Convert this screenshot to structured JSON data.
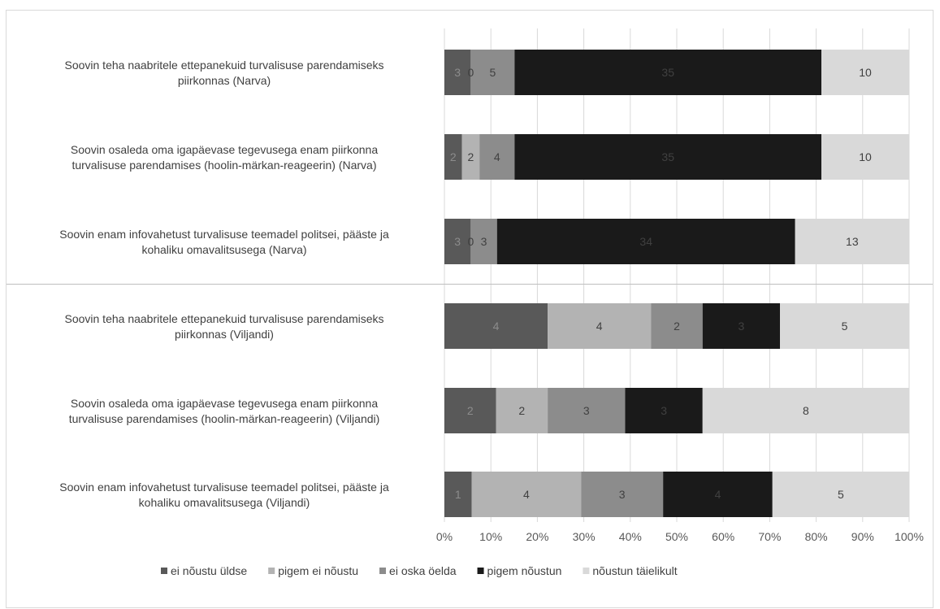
{
  "chart_data": {
    "type": "bar",
    "orientation": "horizontal",
    "stacked": "percent",
    "categories": [
      [
        "Soovin teha naabritele ettepanekuid turvalisuse parendamiseks",
        "piirkonnas  (Narva)"
      ],
      [
        "Soovin osaleda oma igapäevase tegevusega enam piirkonna",
        "turvalisuse parendamises (hoolin-märkan-reageerin)  (Narva)"
      ],
      [
        "Soovin enam infovahetust turvalisuse teemadel politsei, pääste ja",
        "kohaliku omavalitsusega  (Narva)"
      ],
      [
        "Soovin teha naabritele ettepanekuid turvalisuse parendamiseks",
        "piirkonnas  (Viljandi)"
      ],
      [
        "Soovin osaleda oma igapäevase tegevusega enam piirkonna",
        "turvalisuse parendamises (hoolin-märkan-reageerin)  (Viljandi)"
      ],
      [
        "Soovin enam infovahetust turvalisuse teemadel politsei, pääste ja",
        "kohaliku omavalitsusega  (Viljandi)"
      ]
    ],
    "series": [
      {
        "name": "ei nõustu üldse",
        "color": "#595959",
        "label_color": "#8c8c8c",
        "values": [
          3,
          2,
          3,
          4,
          2,
          1
        ]
      },
      {
        "name": "pigem ei nõustu",
        "color": "#b3b3b3",
        "label_color": "#404040",
        "values": [
          0,
          2,
          0,
          4,
          2,
          4
        ]
      },
      {
        "name": "ei oska öelda",
        "color": "#8c8c8c",
        "label_color": "#404040",
        "values": [
          5,
          4,
          3,
          2,
          3,
          3
        ]
      },
      {
        "name": "pigem nõustun",
        "color": "#1a1a1a",
        "label_color": "#404040",
        "values": [
          35,
          35,
          34,
          3,
          3,
          4
        ]
      },
      {
        "name": "nõustun täielikult",
        "color": "#d9d9d9",
        "label_color": "#404040",
        "values": [
          10,
          10,
          13,
          5,
          8,
          5
        ]
      }
    ],
    "xlim": [
      0,
      100
    ],
    "x_ticks": [
      "0%",
      "10%",
      "20%",
      "30%",
      "40%",
      "50%",
      "60%",
      "70%",
      "80%",
      "90%",
      "100%"
    ],
    "grid": "vertical",
    "legend_position": "bottom",
    "group_separator_after": 2,
    "title": "",
    "xlabel": "",
    "ylabel": ""
  }
}
